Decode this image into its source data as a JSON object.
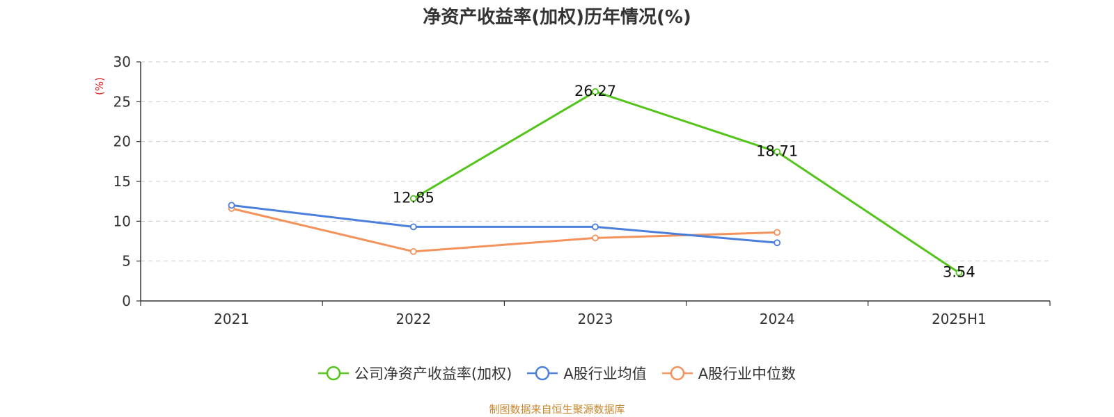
{
  "chart_data": {
    "type": "line",
    "title": "净资产收益率(加权)历年情况(%)",
    "ylabel": "(%)",
    "xlabel": "",
    "categories": [
      "2021",
      "2022",
      "2023",
      "2024",
      "2025H1"
    ],
    "ylim": [
      0,
      30
    ],
    "yticks": [
      0,
      5,
      10,
      15,
      20,
      25,
      30
    ],
    "grid": true,
    "legend_position": "bottom",
    "series": [
      {
        "name": "公司净资产收益率(加权)",
        "color": "#52c41a",
        "values": [
          null,
          12.85,
          26.27,
          18.71,
          3.54
        ],
        "labels": [
          "",
          "12.85",
          "26.27",
          "18.71",
          "3.54"
        ]
      },
      {
        "name": "A股行业均值",
        "color": "#4a7fdc",
        "values": [
          12.0,
          9.3,
          9.3,
          7.3,
          null
        ]
      },
      {
        "name": "A股行业中位数",
        "color": "#f4925c",
        "values": [
          11.6,
          6.2,
          7.9,
          8.6,
          null
        ]
      }
    ]
  },
  "source_note": "制图数据来自恒生聚源数据库"
}
